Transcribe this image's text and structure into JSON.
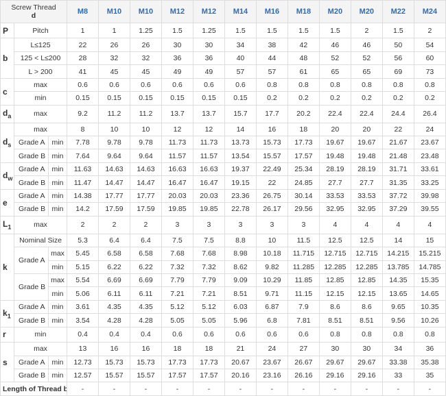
{
  "header": {
    "label": "Screw Thread",
    "symbol": "d",
    "sizes": [
      "M8",
      "M10",
      "M10",
      "M12",
      "M12",
      "M14",
      "M16",
      "M18",
      "M20",
      "M20",
      "M22",
      "M24"
    ]
  },
  "groups": [
    {
      "symbol": "P",
      "rows": [
        {
          "label": "Pitch",
          "values": [
            1,
            1,
            1.25,
            1.5,
            1.25,
            1.5,
            1.5,
            1.5,
            1.5,
            2,
            1.5,
            2
          ]
        }
      ]
    },
    {
      "symbol": "b",
      "rows": [
        {
          "label": "L≤125",
          "values": [
            22,
            26,
            26,
            30,
            30,
            34,
            38,
            42,
            46,
            46,
            50,
            54
          ]
        },
        {
          "label": "125 < L≤200",
          "values": [
            28,
            32,
            32,
            36,
            36,
            40,
            44,
            48,
            52,
            52,
            56,
            60
          ]
        },
        {
          "label": "L > 200",
          "values": [
            41,
            45,
            45,
            49,
            49,
            57,
            57,
            61,
            65,
            65,
            69,
            73
          ]
        }
      ]
    },
    {
      "symbol": "c",
      "rows": [
        {
          "label": "max",
          "values": [
            0.6,
            0.6,
            0.6,
            0.6,
            0.6,
            0.6,
            0.8,
            0.8,
            0.8,
            0.8,
            0.8,
            0.8
          ]
        },
        {
          "label": "min",
          "values": [
            0.15,
            0.15,
            0.15,
            0.15,
            0.15,
            0.15,
            0.2,
            0.2,
            0.2,
            0.2,
            0.2,
            0.2
          ]
        }
      ]
    },
    {
      "symbol": "d",
      "subscript": "a",
      "rows": [
        {
          "label": "max",
          "values": [
            9.2,
            11.2,
            11.2,
            13.7,
            13.7,
            15.7,
            17.7,
            20.2,
            22.4,
            22.4,
            24.4,
            26.4
          ]
        }
      ]
    },
    {
      "symbol": "d",
      "subscript": "s",
      "rows": [
        {
          "label": "max",
          "values": [
            8,
            10,
            10,
            12,
            12,
            14,
            16,
            18,
            20,
            20,
            22,
            24
          ]
        },
        {
          "grade": "Grade A",
          "limit": "min",
          "values": [
            7.78,
            9.78,
            9.78,
            11.73,
            11.73,
            13.73,
            15.73,
            17.73,
            19.67,
            19.67,
            21.67,
            23.67
          ]
        },
        {
          "grade": "Grade B",
          "limit": "min",
          "values": [
            7.64,
            9.64,
            9.64,
            11.57,
            11.57,
            13.54,
            15.57,
            17.57,
            19.48,
            19.48,
            21.48,
            23.48
          ]
        }
      ]
    },
    {
      "symbol": "d",
      "subscript": "w",
      "rows": [
        {
          "grade": "Grade A",
          "limit": "min",
          "values": [
            11.63,
            14.63,
            14.63,
            16.63,
            16.63,
            19.37,
            22.49,
            25.34,
            28.19,
            28.19,
            31.71,
            33.61
          ]
        },
        {
          "grade": "Grade B",
          "limit": "min",
          "values": [
            11.47,
            14.47,
            14.47,
            16.47,
            16.47,
            19.15,
            22,
            24.85,
            27.7,
            27.7,
            31.35,
            33.25
          ]
        }
      ]
    },
    {
      "symbol": "e",
      "rows": [
        {
          "grade": "Grade A",
          "limit": "min",
          "values": [
            14.38,
            17.77,
            17.77,
            20.03,
            20.03,
            23.36,
            26.75,
            30.14,
            33.53,
            33.53,
            37.72,
            39.98
          ]
        },
        {
          "grade": "Grade B",
          "limit": "min",
          "values": [
            14.2,
            17.59,
            17.59,
            19.85,
            19.85,
            22.78,
            26.17,
            29.56,
            32.95,
            32.95,
            37.29,
            39.55
          ]
        }
      ]
    },
    {
      "symbol": "L",
      "subscript": "1",
      "rows": [
        {
          "label": "max",
          "values": [
            2,
            2,
            2,
            3,
            3,
            3,
            3,
            3,
            4,
            4,
            4,
            4
          ]
        }
      ]
    },
    {
      "symbol": "k",
      "rows": [
        {
          "label": "Nominal Size",
          "values": [
            5.3,
            6.4,
            6.4,
            7.5,
            7.5,
            8.8,
            10,
            11.5,
            12.5,
            12.5,
            14,
            15
          ]
        },
        {
          "grade": "Grade A",
          "subrows": [
            {
              "limit": "max",
              "values": [
                5.45,
                6.58,
                6.58,
                7.68,
                7.68,
                8.98,
                10.18,
                11.715,
                12.715,
                12.715,
                14.215,
                15.215
              ]
            },
            {
              "limit": "min",
              "values": [
                5.15,
                6.22,
                6.22,
                7.32,
                7.32,
                8.62,
                9.82,
                11.285,
                12.285,
                12.285,
                13.785,
                14.785
              ]
            }
          ]
        },
        {
          "grade": "Grade B",
          "subrows": [
            {
              "limit": "max",
              "values": [
                5.54,
                6.69,
                6.69,
                7.79,
                7.79,
                9.09,
                10.29,
                11.85,
                12.85,
                12.85,
                14.35,
                15.35
              ]
            },
            {
              "limit": "min",
              "values": [
                5.06,
                6.11,
                6.11,
                7.21,
                7.21,
                8.51,
                9.71,
                11.15,
                12.15,
                12.15,
                13.65,
                14.65
              ]
            }
          ]
        }
      ]
    },
    {
      "symbol": "k",
      "subscript": "1",
      "rows": [
        {
          "grade": "Grade A",
          "limit": "min",
          "values": [
            3.61,
            4.35,
            4.35,
            5.12,
            5.12,
            6.03,
            6.87,
            7.9,
            8.6,
            8.6,
            9.65,
            10.35
          ]
        },
        {
          "grade": "Grade B",
          "limit": "min",
          "values": [
            3.54,
            4.28,
            4.28,
            5.05,
            5.05,
            5.96,
            6.8,
            7.81,
            8.51,
            8.51,
            9.56,
            10.26
          ]
        }
      ]
    },
    {
      "symbol": "r",
      "rows": [
        {
          "label": "min",
          "values": [
            0.4,
            0.4,
            0.4,
            0.6,
            0.6,
            0.6,
            0.6,
            0.6,
            0.8,
            0.8,
            0.8,
            0.8
          ]
        }
      ]
    },
    {
      "symbol": "s",
      "rows": [
        {
          "label": "max",
          "values": [
            13,
            16,
            16,
            18,
            18,
            21,
            24,
            27,
            30,
            30,
            34,
            36
          ]
        },
        {
          "grade": "Grade A",
          "limit": "min",
          "values": [
            12.73,
            15.73,
            15.73,
            17.73,
            17.73,
            20.67,
            23.67,
            26.67,
            29.67,
            29.67,
            33.38,
            35.38
          ]
        },
        {
          "grade": "Grade B",
          "limit": "min",
          "values": [
            12.57,
            15.57,
            15.57,
            17.57,
            17.57,
            20.16,
            23.16,
            26.16,
            29.16,
            29.16,
            33,
            35
          ]
        }
      ]
    },
    {
      "label": "Length of Thread b",
      "values": [
        "-",
        "-",
        "-",
        "-",
        "-",
        "-",
        "-",
        "-",
        "-",
        "-",
        "-",
        "-"
      ]
    }
  ]
}
